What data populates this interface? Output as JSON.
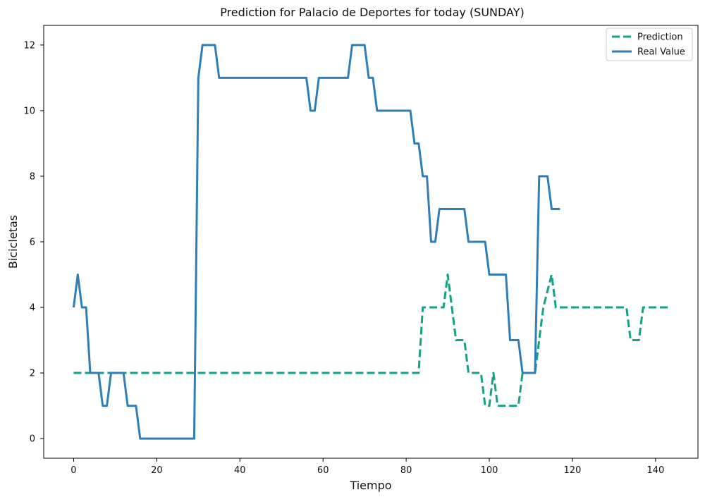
{
  "chart_data": {
    "type": "line",
    "title": "Prediction for Palacio de Deportes for today (SUNDAY)",
    "xlabel": "Tiempo",
    "ylabel": "Bicicletas",
    "xlim": [
      -7.2,
      150.2
    ],
    "ylim": [
      -0.6,
      12.6
    ],
    "xticks": [
      0,
      20,
      40,
      60,
      80,
      100,
      120,
      140
    ],
    "yticks": [
      0,
      2,
      4,
      6,
      8,
      10,
      12
    ],
    "grid": false,
    "legend_position": "top-right",
    "series": [
      {
        "name": "Prediction",
        "color": "#16a085",
        "style": "dashed",
        "points": [
          [
            0,
            2
          ],
          [
            83,
            2
          ],
          [
            84,
            4
          ],
          [
            89,
            4
          ],
          [
            90,
            5
          ],
          [
            91,
            4
          ],
          [
            92,
            3
          ],
          [
            94,
            3
          ],
          [
            95,
            2
          ],
          [
            98,
            2
          ],
          [
            99,
            1
          ],
          [
            100,
            1
          ],
          [
            101,
            2
          ],
          [
            102,
            1
          ],
          [
            107,
            1
          ],
          [
            108,
            2
          ],
          [
            111,
            2
          ],
          [
            113,
            4
          ],
          [
            115,
            5
          ],
          [
            116,
            4
          ],
          [
            117,
            4
          ],
          [
            133,
            4
          ],
          [
            134,
            3
          ],
          [
            136,
            3
          ],
          [
            137,
            4
          ],
          [
            143,
            4
          ]
        ]
      },
      {
        "name": "Real Value",
        "color": "#2e7eb8",
        "style": "solid",
        "points": [
          [
            0,
            4
          ],
          [
            1,
            5
          ],
          [
            2,
            4
          ],
          [
            3,
            4
          ],
          [
            4,
            2
          ],
          [
            6,
            2
          ],
          [
            7,
            1
          ],
          [
            8,
            1
          ],
          [
            9,
            2
          ],
          [
            12,
            2
          ],
          [
            13,
            1
          ],
          [
            15,
            1
          ],
          [
            16,
            0
          ],
          [
            29,
            0
          ],
          [
            30,
            11
          ],
          [
            31,
            12
          ],
          [
            34,
            12
          ],
          [
            35,
            11
          ],
          [
            56,
            11
          ],
          [
            57,
            10
          ],
          [
            58,
            10
          ],
          [
            59,
            11
          ],
          [
            66,
            11
          ],
          [
            67,
            12
          ],
          [
            70,
            12
          ],
          [
            71,
            11
          ],
          [
            72,
            11
          ],
          [
            73,
            10
          ],
          [
            81,
            10
          ],
          [
            82,
            9
          ],
          [
            83,
            9
          ],
          [
            84,
            8
          ],
          [
            85,
            8
          ],
          [
            86,
            6
          ],
          [
            87,
            6
          ],
          [
            88,
            7
          ],
          [
            94,
            7
          ],
          [
            95,
            6
          ],
          [
            99,
            6
          ],
          [
            100,
            5
          ],
          [
            104,
            5
          ],
          [
            105,
            3
          ],
          [
            107,
            3
          ],
          [
            108,
            2
          ],
          [
            111,
            2
          ],
          [
            112,
            8
          ],
          [
            114,
            8
          ],
          [
            115,
            7
          ],
          [
            117,
            7
          ]
        ]
      }
    ]
  }
}
